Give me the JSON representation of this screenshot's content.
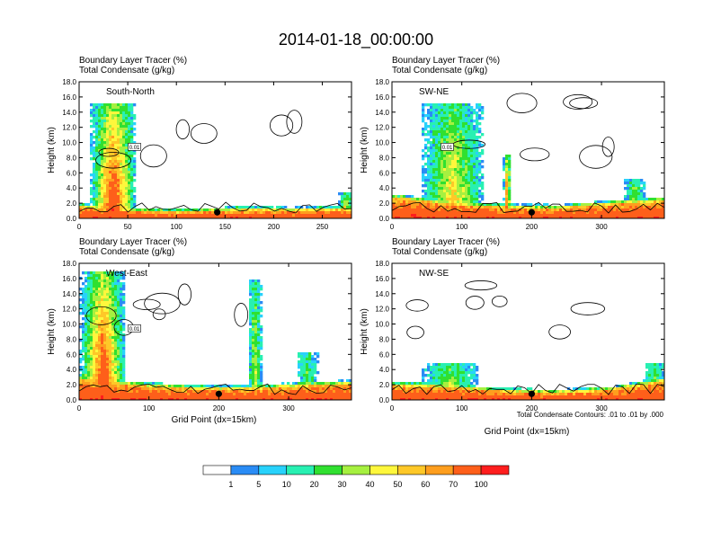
{
  "figure_title": "2014-01-18_00:00:00",
  "xlabel": "Grid Point (dx=15km)",
  "contour_note": "Total Condensate Contours: .01 to .01 by .000",
  "palette": [
    "#ffffff",
    "#2a8cf5",
    "#28d2fb",
    "#28f0b2",
    "#30e030",
    "#a6f040",
    "#fef73c",
    "#fec828",
    "#fe9e1e",
    "#fe5f1a",
    "#fe1e1e"
  ],
  "colorbar": {
    "labels": [
      "1",
      "5",
      "10",
      "20",
      "30",
      "40",
      "50",
      "60",
      "70",
      "100"
    ],
    "colors": [
      "#ffffff",
      "#2a8cf5",
      "#28d2fb",
      "#28f0b2",
      "#30e030",
      "#a6f040",
      "#fef73c",
      "#fec828",
      "#fe9e1e",
      "#fe5f1a",
      "#fe1e1e"
    ]
  },
  "chart_data": [
    {
      "type": "heatmap",
      "title": "South-North",
      "line1": "Boundary Layer Tracer   (%)",
      "line2": "Total Condensate   (g/kg)",
      "ylabel": "Height (km)",
      "xlim": [
        0,
        280
      ],
      "ylim": [
        0,
        18
      ],
      "xticks": [
        0,
        50,
        100,
        150,
        200,
        250
      ],
      "yticks": [
        "0.0",
        "2.0",
        "4.0",
        "6.0",
        "8.0",
        "10.0",
        "12.0",
        "14.0",
        "16.0",
        "18.0"
      ],
      "marker_x": 142,
      "contour_label": "0.01",
      "surface_depth_km": [
        1.6,
        1.0,
        0.9,
        1.2,
        1.1,
        1.3
      ],
      "plumes": [
        {
          "x": [
            10,
            58
          ],
          "top_km": 15.5,
          "max_pct": 100
        },
        {
          "x": [
            265,
            280
          ],
          "top_km": 3.5,
          "max_pct": 70
        }
      ]
    },
    {
      "type": "heatmap",
      "title": "SW-NE",
      "line1": "Boundary Layer Tracer   (%)",
      "line2": "Total Condensate   (g/kg)",
      "ylabel": "Height (km)",
      "xlim": [
        0,
        390
      ],
      "ylim": [
        0,
        18
      ],
      "xticks": [
        0,
        100,
        200,
        300
      ],
      "yticks": [
        "0.0",
        "2.0",
        "4.0",
        "6.0",
        "8.0",
        "10.0",
        "12.0",
        "14.0",
        "16.0",
        "18.0"
      ],
      "marker_x": 200,
      "contour_label": "0.01",
      "surface_depth_km": [
        2.8,
        2.0,
        1.5,
        1.4,
        2.0,
        2.4
      ],
      "plumes": [
        {
          "x": [
            40,
            130
          ],
          "top_km": 15.5,
          "max_pct": 60
        },
        {
          "x": [
            158,
            168
          ],
          "top_km": 8.5,
          "max_pct": 100
        },
        {
          "x": [
            330,
            360
          ],
          "top_km": 5.5,
          "max_pct": 50
        }
      ]
    },
    {
      "type": "heatmap",
      "title": "West-East",
      "line1": "Boundary Layer Tracer   (%)",
      "line2": "Total Condensate   (g/kg)",
      "ylabel": "Height (km)",
      "xlim": [
        0,
        390
      ],
      "ylim": [
        0,
        18
      ],
      "xticks": [
        0,
        100,
        200,
        300
      ],
      "yticks": [
        "0.0",
        "2.0",
        "4.0",
        "6.0",
        "8.0",
        "10.0",
        "12.0",
        "14.0",
        "16.0",
        "18.0"
      ],
      "marker_x": 200,
      "contour_label": "0.01",
      "surface_depth_km": [
        2.8,
        2.0,
        1.6,
        1.5,
        1.9,
        2.2
      ],
      "plumes": [
        {
          "x": [
            0,
            65
          ],
          "top_km": 17.0,
          "max_pct": 100
        },
        {
          "x": [
            310,
            340
          ],
          "top_km": 6.5,
          "max_pct": 40
        },
        {
          "x": [
            240,
            260
          ],
          "top_km": 16.0,
          "max_pct": 50
        }
      ]
    },
    {
      "type": "heatmap",
      "title": "NW-SE",
      "line1": "Boundary Layer Tracer   (%)",
      "line2": "Total Condensate   (g/kg)",
      "ylabel": "Height (km)",
      "xlim": [
        0,
        390
      ],
      "ylim": [
        0,
        18
      ],
      "xticks": [
        0,
        100,
        200,
        300
      ],
      "yticks": [
        "0.0",
        "2.0",
        "4.0",
        "6.0",
        "8.0",
        "10.0",
        "12.0",
        "14.0",
        "16.0",
        "18.0"
      ],
      "marker_x": 200,
      "contour_label": "",
      "surface_depth_km": [
        2.0,
        1.8,
        1.2,
        1.0,
        1.4,
        2.6
      ],
      "plumes": [
        {
          "x": [
            40,
            120
          ],
          "top_km": 5.0,
          "max_pct": 50
        },
        {
          "x": [
            360,
            390
          ],
          "top_km": 5.0,
          "max_pct": 50
        }
      ]
    }
  ]
}
